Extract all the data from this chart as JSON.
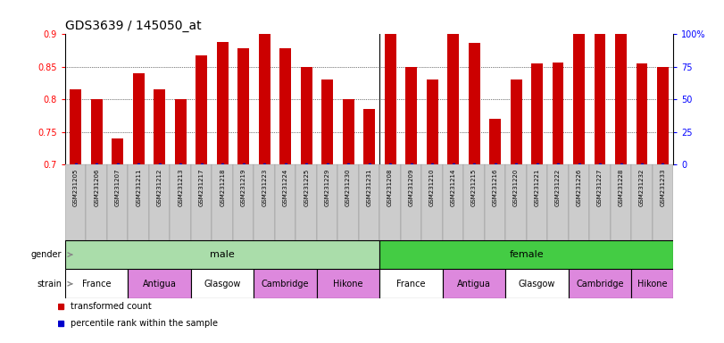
{
  "title": "GDS3639 / 145050_at",
  "samples": [
    "GSM231205",
    "GSM231206",
    "GSM231207",
    "GSM231211",
    "GSM231212",
    "GSM231213",
    "GSM231217",
    "GSM231218",
    "GSM231219",
    "GSM231223",
    "GSM231224",
    "GSM231225",
    "GSM231229",
    "GSM231230",
    "GSM231231",
    "GSM231208",
    "GSM231209",
    "GSM231210",
    "GSM231214",
    "GSM231215",
    "GSM231216",
    "GSM231220",
    "GSM231221",
    "GSM231222",
    "GSM231226",
    "GSM231227",
    "GSM231228",
    "GSM231232",
    "GSM231233"
  ],
  "values": [
    0.815,
    0.8,
    0.74,
    0.84,
    0.815,
    0.8,
    0.867,
    0.888,
    0.878,
    0.9,
    0.878,
    0.85,
    0.83,
    0.8,
    0.785,
    0.9,
    0.85,
    0.83,
    0.9,
    0.887,
    0.77,
    0.83,
    0.855,
    0.857,
    0.9,
    0.9,
    0.9,
    0.855,
    0.85
  ],
  "bar_color": "#cc0000",
  "percentile_color": "#0000cc",
  "ymin": 0.7,
  "ymax": 0.9,
  "yticks": [
    0.7,
    0.75,
    0.8,
    0.85,
    0.9
  ],
  "ytick_labels": [
    "0.7",
    "0.75",
    "0.8",
    "0.85",
    "0.9"
  ],
  "right_yticks": [
    0,
    25,
    50,
    75,
    100
  ],
  "right_ytick_labels": [
    "0",
    "25",
    "50",
    "75",
    "100%"
  ],
  "n_male": 15,
  "n_female": 14,
  "male_strains": [
    {
      "label": "France",
      "count": 3,
      "color": "#ffffff"
    },
    {
      "label": "Antigua",
      "count": 3,
      "color": "#dd88dd"
    },
    {
      "label": "Glasgow",
      "count": 3,
      "color": "#ffffff"
    },
    {
      "label": "Cambridge",
      "count": 3,
      "color": "#dd88dd"
    },
    {
      "label": "Hikone",
      "count": 3,
      "color": "#dd88dd"
    }
  ],
  "female_strains": [
    {
      "label": "France",
      "count": 3,
      "color": "#ffffff"
    },
    {
      "label": "Antigua",
      "count": 3,
      "color": "#dd88dd"
    },
    {
      "label": "Glasgow",
      "count": 3,
      "color": "#ffffff"
    },
    {
      "label": "Cambridge",
      "count": 3,
      "color": "#dd88dd"
    },
    {
      "label": "Hikone",
      "count": 2,
      "color": "#dd88dd"
    }
  ],
  "male_color": "#aaddaa",
  "female_color": "#44cc44",
  "xtick_bg_color": "#cccccc",
  "background_color": "#ffffff",
  "title_fontsize": 10,
  "bar_tick_fontsize": 5.0,
  "axis_tick_fontsize": 7,
  "row_label_fontsize": 7,
  "strain_fontsize": 7,
  "gender_fontsize": 8,
  "legend_fontsize": 7
}
